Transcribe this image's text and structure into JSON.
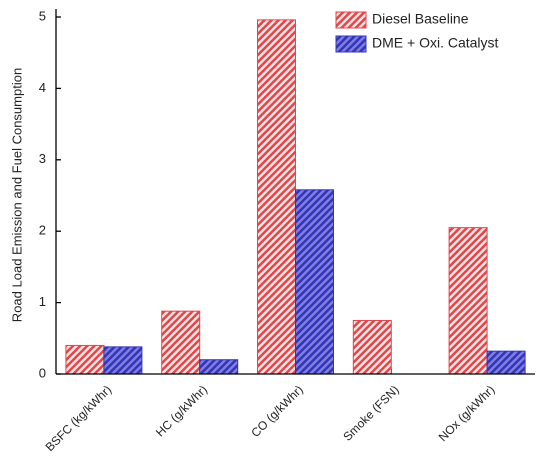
{
  "chart_data": {
    "type": "bar",
    "ylabel": "Road Load Emission and Fuel Consumption",
    "categories": [
      "BSFC (kg/kWhr)",
      "HC (g/kWhr)",
      "CO (g/kWhr)",
      "Smoke (FSN)",
      "NOx (g/kWhr)"
    ],
    "series": [
      {
        "name": "Diesel Baseline",
        "color": "#e0464a",
        "values": [
          0.4,
          0.88,
          4.96,
          0.75,
          2.05
        ]
      },
      {
        "name": "DME + Oxi. Catalyst",
        "color": "#3434b8",
        "values": [
          0.38,
          0.2,
          2.58,
          0,
          0.32
        ]
      }
    ],
    "ylim": [
      0,
      5
    ],
    "yticks": [
      0,
      1,
      2,
      3,
      4,
      5
    ],
    "legend": "upper right"
  }
}
